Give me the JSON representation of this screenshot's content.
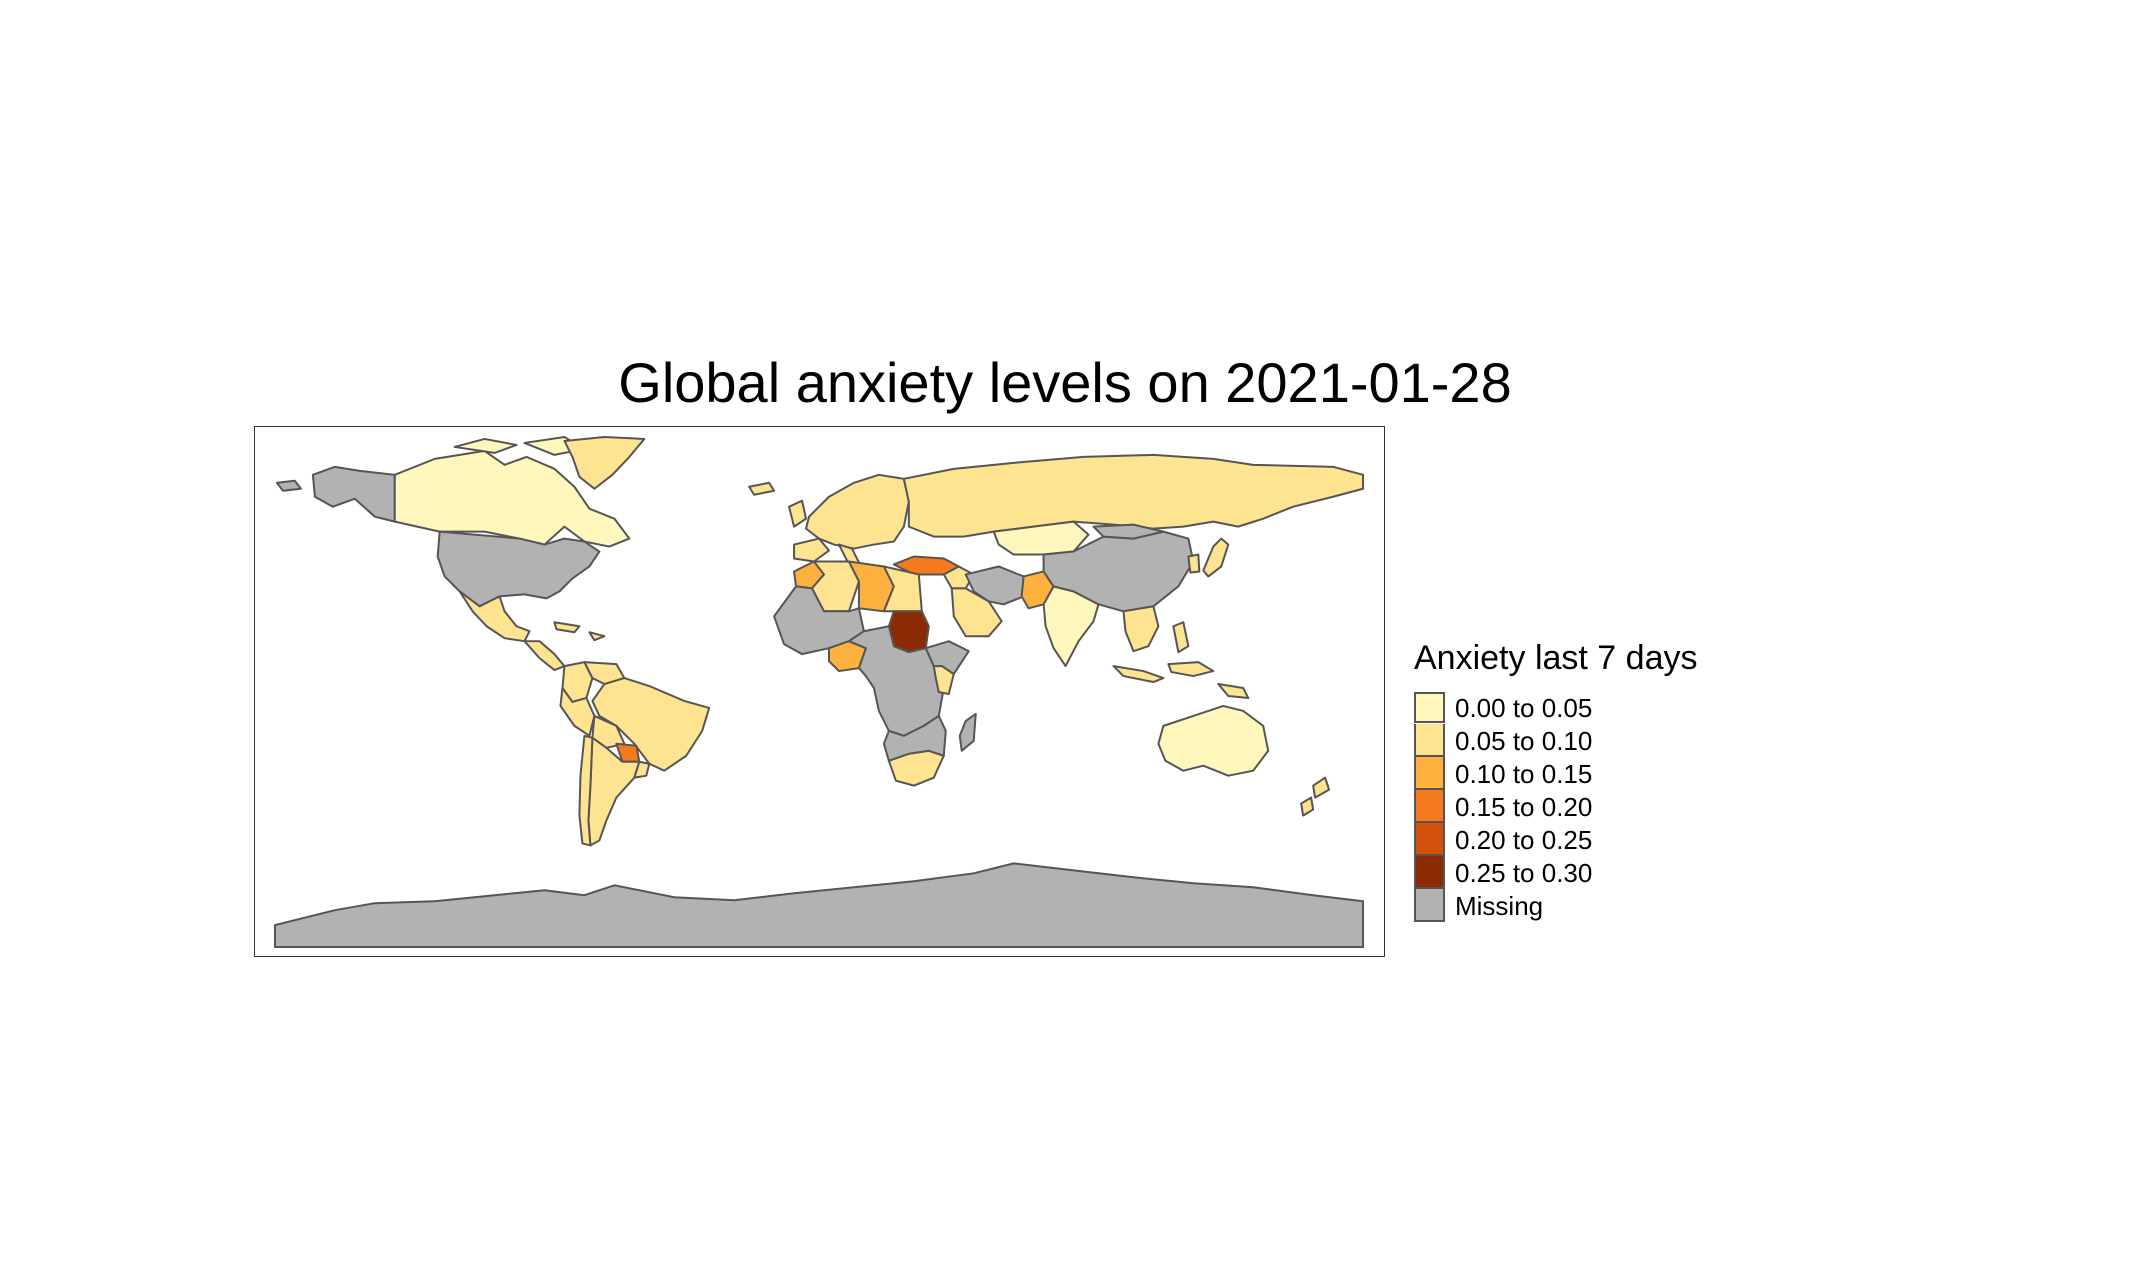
{
  "title": "Global anxiety levels on 2021-01-28",
  "legend": {
    "title": "Anxiety last 7 days",
    "classes": [
      {
        "label": "0.00 to 0.05",
        "color": "#FFF7BC"
      },
      {
        "label": "0.05 to 0.10",
        "color": "#FEE391"
      },
      {
        "label": "0.10 to 0.15",
        "color": "#FEB13E"
      },
      {
        "label": "0.15 to 0.20",
        "color": "#F57A1E"
      },
      {
        "label": "0.20 to 0.25",
        "color": "#D5500A"
      },
      {
        "label": "0.25 to 0.30",
        "color": "#8C2A04"
      },
      {
        "label": "Missing",
        "color": "#B2B2B2"
      }
    ]
  },
  "map": {
    "projection": "equirectangular",
    "border_color": "#555555",
    "regions": [
      {
        "name": "Canada",
        "class": 0
      },
      {
        "name": "Alaska",
        "class": 6
      },
      {
        "name": "Greenland",
        "class": 1
      },
      {
        "name": "United States",
        "class": 6
      },
      {
        "name": "Mexico",
        "class": 1
      },
      {
        "name": "Central America",
        "class": 1
      },
      {
        "name": "Colombia",
        "class": 1
      },
      {
        "name": "Venezuela",
        "class": 1
      },
      {
        "name": "Brazil",
        "class": 1
      },
      {
        "name": "Peru",
        "class": 1
      },
      {
        "name": "Bolivia",
        "class": 1
      },
      {
        "name": "Paraguay",
        "class": 3
      },
      {
        "name": "Argentina",
        "class": 1
      },
      {
        "name": "Chile",
        "class": 1
      },
      {
        "name": "Europe",
        "class": 1
      },
      {
        "name": "Russia",
        "class": 1
      },
      {
        "name": "Kazakhstan",
        "class": 0
      },
      {
        "name": "Turkey",
        "class": 3
      },
      {
        "name": "Morocco",
        "class": 2
      },
      {
        "name": "Algeria",
        "class": 1
      },
      {
        "name": "Libya",
        "class": 2
      },
      {
        "name": "Egypt",
        "class": 1
      },
      {
        "name": "Sudan",
        "class": 5
      },
      {
        "name": "Nigeria",
        "class": 2
      },
      {
        "name": "Kenya",
        "class": 1
      },
      {
        "name": "South Africa",
        "class": 1
      },
      {
        "name": "Saudi Arabia",
        "class": 1
      },
      {
        "name": "Pakistan",
        "class": 2
      },
      {
        "name": "India",
        "class": 0
      },
      {
        "name": "China",
        "class": 6
      },
      {
        "name": "Mongolia",
        "class": 6
      },
      {
        "name": "Japan",
        "class": 1
      },
      {
        "name": "Southeast Asia",
        "class": 1
      },
      {
        "name": "Indonesia",
        "class": 1
      },
      {
        "name": "Australia",
        "class": 0
      },
      {
        "name": "New Zealand",
        "class": 1
      },
      {
        "name": "Central Africa",
        "class": 6
      },
      {
        "name": "Antarctica",
        "class": 6
      }
    ]
  }
}
